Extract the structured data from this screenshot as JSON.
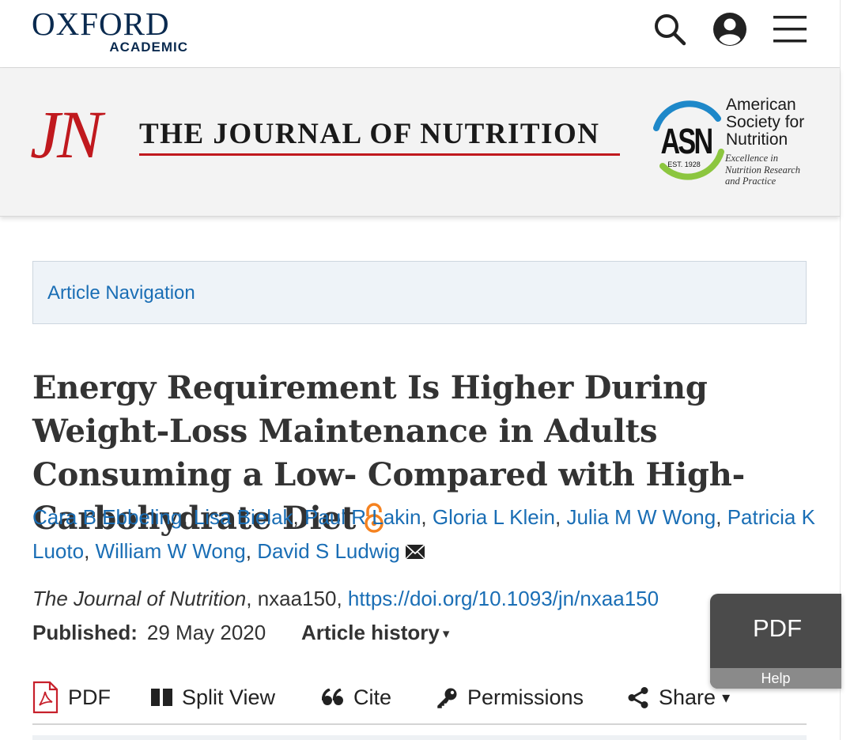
{
  "header": {
    "brand_name": "OXFORD",
    "brand_sub": "ACADEMIC",
    "icons": [
      "search-icon",
      "account-icon",
      "menu-icon"
    ]
  },
  "journal": {
    "monogram": "JN",
    "title": "THE JOURNAL OF NUTRITION",
    "society_logo_text": "ASN",
    "society_est": "EST. 1928",
    "society_name_lines": [
      "American",
      "Society for",
      "Nutrition"
    ],
    "society_tagline_lines": [
      "Excellence in",
      "Nutrition Research",
      "and Practice"
    ]
  },
  "article_nav": {
    "label": "Article Navigation"
  },
  "article": {
    "title": "Energy Requirement Is Higher During Weight-Loss Maintenance in Adults Consuming a Low- Compared with High-Carbohydrate Diet",
    "open_access_icon": "open-access-icon",
    "authors": [
      "Cara B Ebbeling",
      "Lisa Bielak",
      "Paul R Lakin",
      "Gloria L Klein",
      "Julia M W Wong",
      "Patricia K Luoto",
      "William W Wong",
      "David S Ludwig"
    ],
    "author_separator": ", ",
    "journal_name": "The Journal of Nutrition",
    "article_id": ", nxaa150, ",
    "doi": "https://doi.org/10.1093/jn/nxaa150",
    "published_label": "Published:",
    "published_date": "29 May 2020",
    "history_label": "Article history",
    "history_caret": "▾"
  },
  "tools": {
    "pdf": "PDF",
    "split_view": "Split View",
    "cite": "Cite",
    "permissions": "Permissions",
    "share": "Share",
    "share_caret": "▾"
  },
  "pdf_widget": {
    "label": "PDF",
    "help": "Help"
  },
  "colors": {
    "link": "#1a6eb5",
    "jn_red": "#c0191e",
    "oxford_navy": "#0a2a4f",
    "oa_orange": "#f58220"
  }
}
